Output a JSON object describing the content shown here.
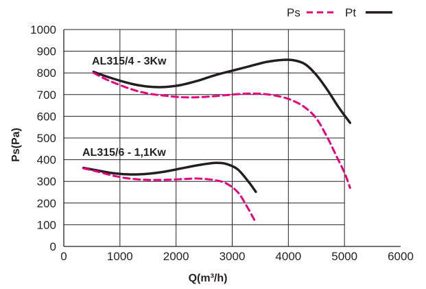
{
  "chart_data": {
    "type": "line",
    "title": "",
    "xlabel": "Q(m³/h)",
    "ylabel": "Ps(Pa)",
    "xlim": [
      0,
      6000
    ],
    "ylim": [
      0,
      1000
    ],
    "x_ticks": [
      "0",
      "1000",
      "2000",
      "3000",
      "4000",
      "5000",
      "6000"
    ],
    "y_ticks": [
      "0",
      "100",
      "200",
      "300",
      "400",
      "500",
      "600",
      "700",
      "800",
      "900",
      "1000"
    ],
    "grid": true,
    "legend": {
      "placement": "top-right",
      "entries": [
        {
          "label": "Ps",
          "style": "dashed",
          "color": "#e6007e"
        },
        {
          "label": "Pt",
          "style": "solid",
          "color": "#231f20"
        }
      ]
    },
    "curve_labels": [
      "AL315/4 - 3Kw",
      "AL315/6 - 1,1Kw"
    ],
    "series": [
      {
        "curve": "AL315/4 - 3Kw",
        "kind": "Pt",
        "color": "#231f20",
        "style": "solid",
        "points": [
          [
            530,
            805
          ],
          [
            800,
            780
          ],
          [
            1200,
            750
          ],
          [
            1500,
            737
          ],
          [
            1800,
            735
          ],
          [
            2100,
            745
          ],
          [
            2400,
            765
          ],
          [
            2700,
            790
          ],
          [
            3000,
            810
          ],
          [
            3300,
            830
          ],
          [
            3600,
            850
          ],
          [
            3900,
            860
          ],
          [
            4100,
            858
          ],
          [
            4300,
            840
          ],
          [
            4500,
            790
          ],
          [
            4700,
            720
          ],
          [
            4900,
            640
          ],
          [
            5100,
            570
          ]
        ]
      },
      {
        "curve": "AL315/4 - 3Kw",
        "kind": "Ps",
        "color": "#e6007e",
        "style": "dashed",
        "points": [
          [
            530,
            800
          ],
          [
            800,
            765
          ],
          [
            1200,
            725
          ],
          [
            1500,
            705
          ],
          [
            1800,
            695
          ],
          [
            2100,
            688
          ],
          [
            2400,
            688
          ],
          [
            2700,
            693
          ],
          [
            3000,
            700
          ],
          [
            3300,
            705
          ],
          [
            3600,
            702
          ],
          [
            3900,
            688
          ],
          [
            4100,
            670
          ],
          [
            4300,
            640
          ],
          [
            4500,
            590
          ],
          [
            4700,
            500
          ],
          [
            4850,
            420
          ],
          [
            5000,
            340
          ],
          [
            5100,
            270
          ]
        ]
      },
      {
        "curve": "AL315/6 - 1,1Kw",
        "kind": "Pt",
        "color": "#231f20",
        "style": "solid",
        "points": [
          [
            350,
            362
          ],
          [
            600,
            350
          ],
          [
            900,
            337
          ],
          [
            1200,
            332
          ],
          [
            1500,
            335
          ],
          [
            1800,
            345
          ],
          [
            2100,
            360
          ],
          [
            2400,
            375
          ],
          [
            2700,
            385
          ],
          [
            2900,
            380
          ],
          [
            3100,
            355
          ],
          [
            3300,
            295
          ],
          [
            3420,
            252
          ]
        ]
      },
      {
        "curve": "AL315/6 - 1,1Kw",
        "kind": "Ps",
        "color": "#e6007e",
        "style": "dashed",
        "points": [
          [
            350,
            360
          ],
          [
            600,
            345
          ],
          [
            900,
            325
          ],
          [
            1200,
            312
          ],
          [
            1500,
            307
          ],
          [
            1800,
            307
          ],
          [
            2100,
            310
          ],
          [
            2400,
            313
          ],
          [
            2700,
            305
          ],
          [
            2900,
            290
          ],
          [
            3100,
            250
          ],
          [
            3250,
            190
          ],
          [
            3400,
            120
          ]
        ]
      }
    ]
  }
}
